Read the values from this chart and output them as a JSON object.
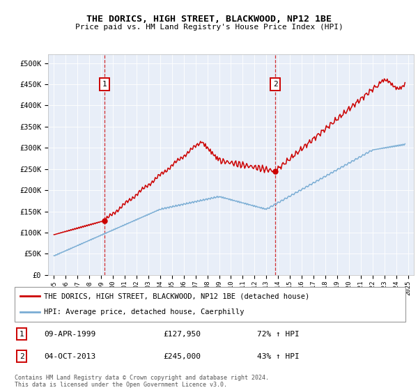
{
  "title": "THE DORICS, HIGH STREET, BLACKWOOD, NP12 1BE",
  "subtitle": "Price paid vs. HM Land Registry's House Price Index (HPI)",
  "bg_color": "#e8eef8",
  "red_line_label": "THE DORICS, HIGH STREET, BLACKWOOD, NP12 1BE (detached house)",
  "blue_line_label": "HPI: Average price, detached house, Caerphilly",
  "annotation1_date": "09-APR-1999",
  "annotation1_price": "£127,950",
  "annotation1_hpi": "72% ↑ HPI",
  "annotation2_date": "04-OCT-2013",
  "annotation2_price": "£245,000",
  "annotation2_hpi": "43% ↑ HPI",
  "footer": "Contains HM Land Registry data © Crown copyright and database right 2024.\nThis data is licensed under the Open Government Licence v3.0.",
  "vline1_x": 1999.27,
  "vline2_x": 2013.75,
  "marker1_x": 1999.27,
  "marker1_y": 127950,
  "marker2_x": 2013.75,
  "marker2_y": 245000,
  "ylim": [
    0,
    520000
  ],
  "xlim_start": 1994.5,
  "xlim_end": 2025.5,
  "yticks": [
    0,
    50000,
    100000,
    150000,
    200000,
    250000,
    300000,
    350000,
    400000,
    450000,
    500000
  ],
  "ytick_labels": [
    "£0",
    "£50K",
    "£100K",
    "£150K",
    "£200K",
    "£250K",
    "£300K",
    "£350K",
    "£400K",
    "£450K",
    "£500K"
  ],
  "xticks": [
    1995,
    1996,
    1997,
    1998,
    1999,
    2000,
    2001,
    2002,
    2003,
    2004,
    2005,
    2006,
    2007,
    2008,
    2009,
    2010,
    2011,
    2012,
    2013,
    2014,
    2015,
    2016,
    2017,
    2018,
    2019,
    2020,
    2021,
    2022,
    2023,
    2024,
    2025
  ]
}
